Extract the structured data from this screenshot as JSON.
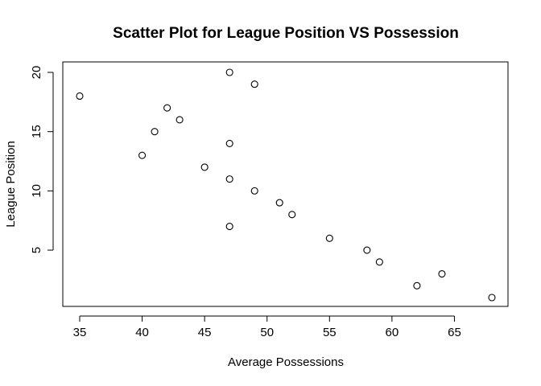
{
  "chart_data": {
    "type": "scatter",
    "title": "Scatter Plot for League Position VS Possession",
    "xlabel": "Average Possessions",
    "ylabel": "League Position",
    "xlim": [
      35,
      68
    ],
    "ylim": [
      1,
      20
    ],
    "xticks": [
      35,
      40,
      45,
      50,
      55,
      60,
      65
    ],
    "yticks": [
      5,
      10,
      15,
      20
    ],
    "grid": false,
    "legend": "none",
    "marker": "open-circle",
    "points": [
      {
        "x": 35,
        "y": 18
      },
      {
        "x": 40,
        "y": 13
      },
      {
        "x": 41,
        "y": 15
      },
      {
        "x": 42,
        "y": 17
      },
      {
        "x": 43,
        "y": 16
      },
      {
        "x": 45,
        "y": 12
      },
      {
        "x": 47,
        "y": 20
      },
      {
        "x": 47,
        "y": 14
      },
      {
        "x": 47,
        "y": 11
      },
      {
        "x": 47,
        "y": 7
      },
      {
        "x": 49,
        "y": 19
      },
      {
        "x": 49,
        "y": 10
      },
      {
        "x": 51,
        "y": 9
      },
      {
        "x": 52,
        "y": 8
      },
      {
        "x": 55,
        "y": 6
      },
      {
        "x": 58,
        "y": 5
      },
      {
        "x": 59,
        "y": 4
      },
      {
        "x": 62,
        "y": 2
      },
      {
        "x": 64,
        "y": 3
      },
      {
        "x": 68,
        "y": 1
      }
    ]
  }
}
